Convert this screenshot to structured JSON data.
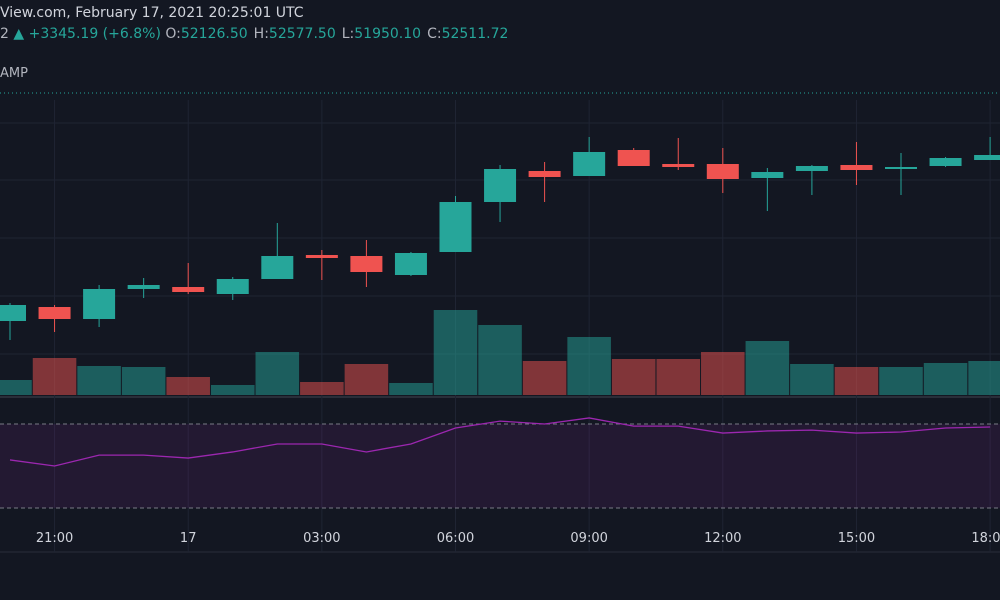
{
  "header": {
    "source_line": "View.com, February 17, 2021 20:25:01 UTC",
    "symbol_fragment": "2",
    "change": "+3345.19 (+6.8%)",
    "ohlc": [
      {
        "label": "O:",
        "value": "52126.50"
      },
      {
        "label": "H:",
        "value": "52577.50"
      },
      {
        "label": "L:",
        "value": "51950.10"
      },
      {
        "label": "C:",
        "value": "52511.72"
      }
    ],
    "indicator_fragment": "AMP"
  },
  "chart_data": {
    "type": "candlestick",
    "categories": [
      null,
      "21:00",
      null,
      null,
      "17",
      null,
      null,
      "03:00",
      null,
      null,
      "06:00",
      null,
      null,
      "09:00",
      null,
      null,
      "12:00",
      null,
      null,
      "15:00",
      null,
      null,
      "18:00"
    ],
    "open": [
      50840,
      50980,
      50860,
      51160,
      51180,
      51110,
      51260,
      51500,
      51490,
      51300,
      51530,
      52030,
      52340,
      52290,
      52550,
      52410,
      52410,
      52270,
      52340,
      52400,
      52360,
      52390,
      52450
    ],
    "high": [
      51020,
      51000,
      51200,
      51270,
      51420,
      51280,
      51820,
      51550,
      51650,
      51530,
      52090,
      52400,
      52430,
      52680,
      52570,
      52670,
      52570,
      52370,
      52400,
      52630,
      52520,
      52480,
      52680
    ],
    "low": [
      50650,
      50730,
      50780,
      51070,
      51110,
      51050,
      51260,
      51250,
      51180,
      51290,
      51530,
      51830,
      52030,
      52290,
      52390,
      52350,
      52120,
      51940,
      52100,
      52200,
      52100,
      52380,
      52450
    ],
    "close": [
      51000,
      50860,
      51160,
      51200,
      51130,
      51260,
      51490,
      51470,
      51330,
      51520,
      52030,
      52360,
      52280,
      52530,
      52390,
      52380,
      52260,
      52330,
      52390,
      52350,
      52380,
      52470,
      52500
    ],
    "ylim": [
      50100,
      53100
    ],
    "up_color": "#26a69a",
    "down_color": "#ef5350",
    "volume": [
      15,
      37,
      29,
      28,
      18,
      10,
      43,
      13,
      31,
      12,
      85,
      70,
      34,
      58,
      36,
      36,
      43,
      54,
      31,
      28,
      28,
      32,
      34
    ],
    "volume_ylim": [
      0,
      100
    ],
    "rsi": [
      52.9,
      50.0,
      55.2,
      55.2,
      53.8,
      56.7,
      60.5,
      60.5,
      56.7,
      60.5,
      68.1,
      71.4,
      70.0,
      72.9,
      69.0,
      69.0,
      65.7,
      66.7,
      67.1,
      65.7,
      66.2,
      68.1,
      68.6
    ],
    "rsi_ylim": [
      10,
      82.4
    ],
    "rsi_bands": [
      70,
      30
    ],
    "rsi_color": "#9c27b0"
  }
}
